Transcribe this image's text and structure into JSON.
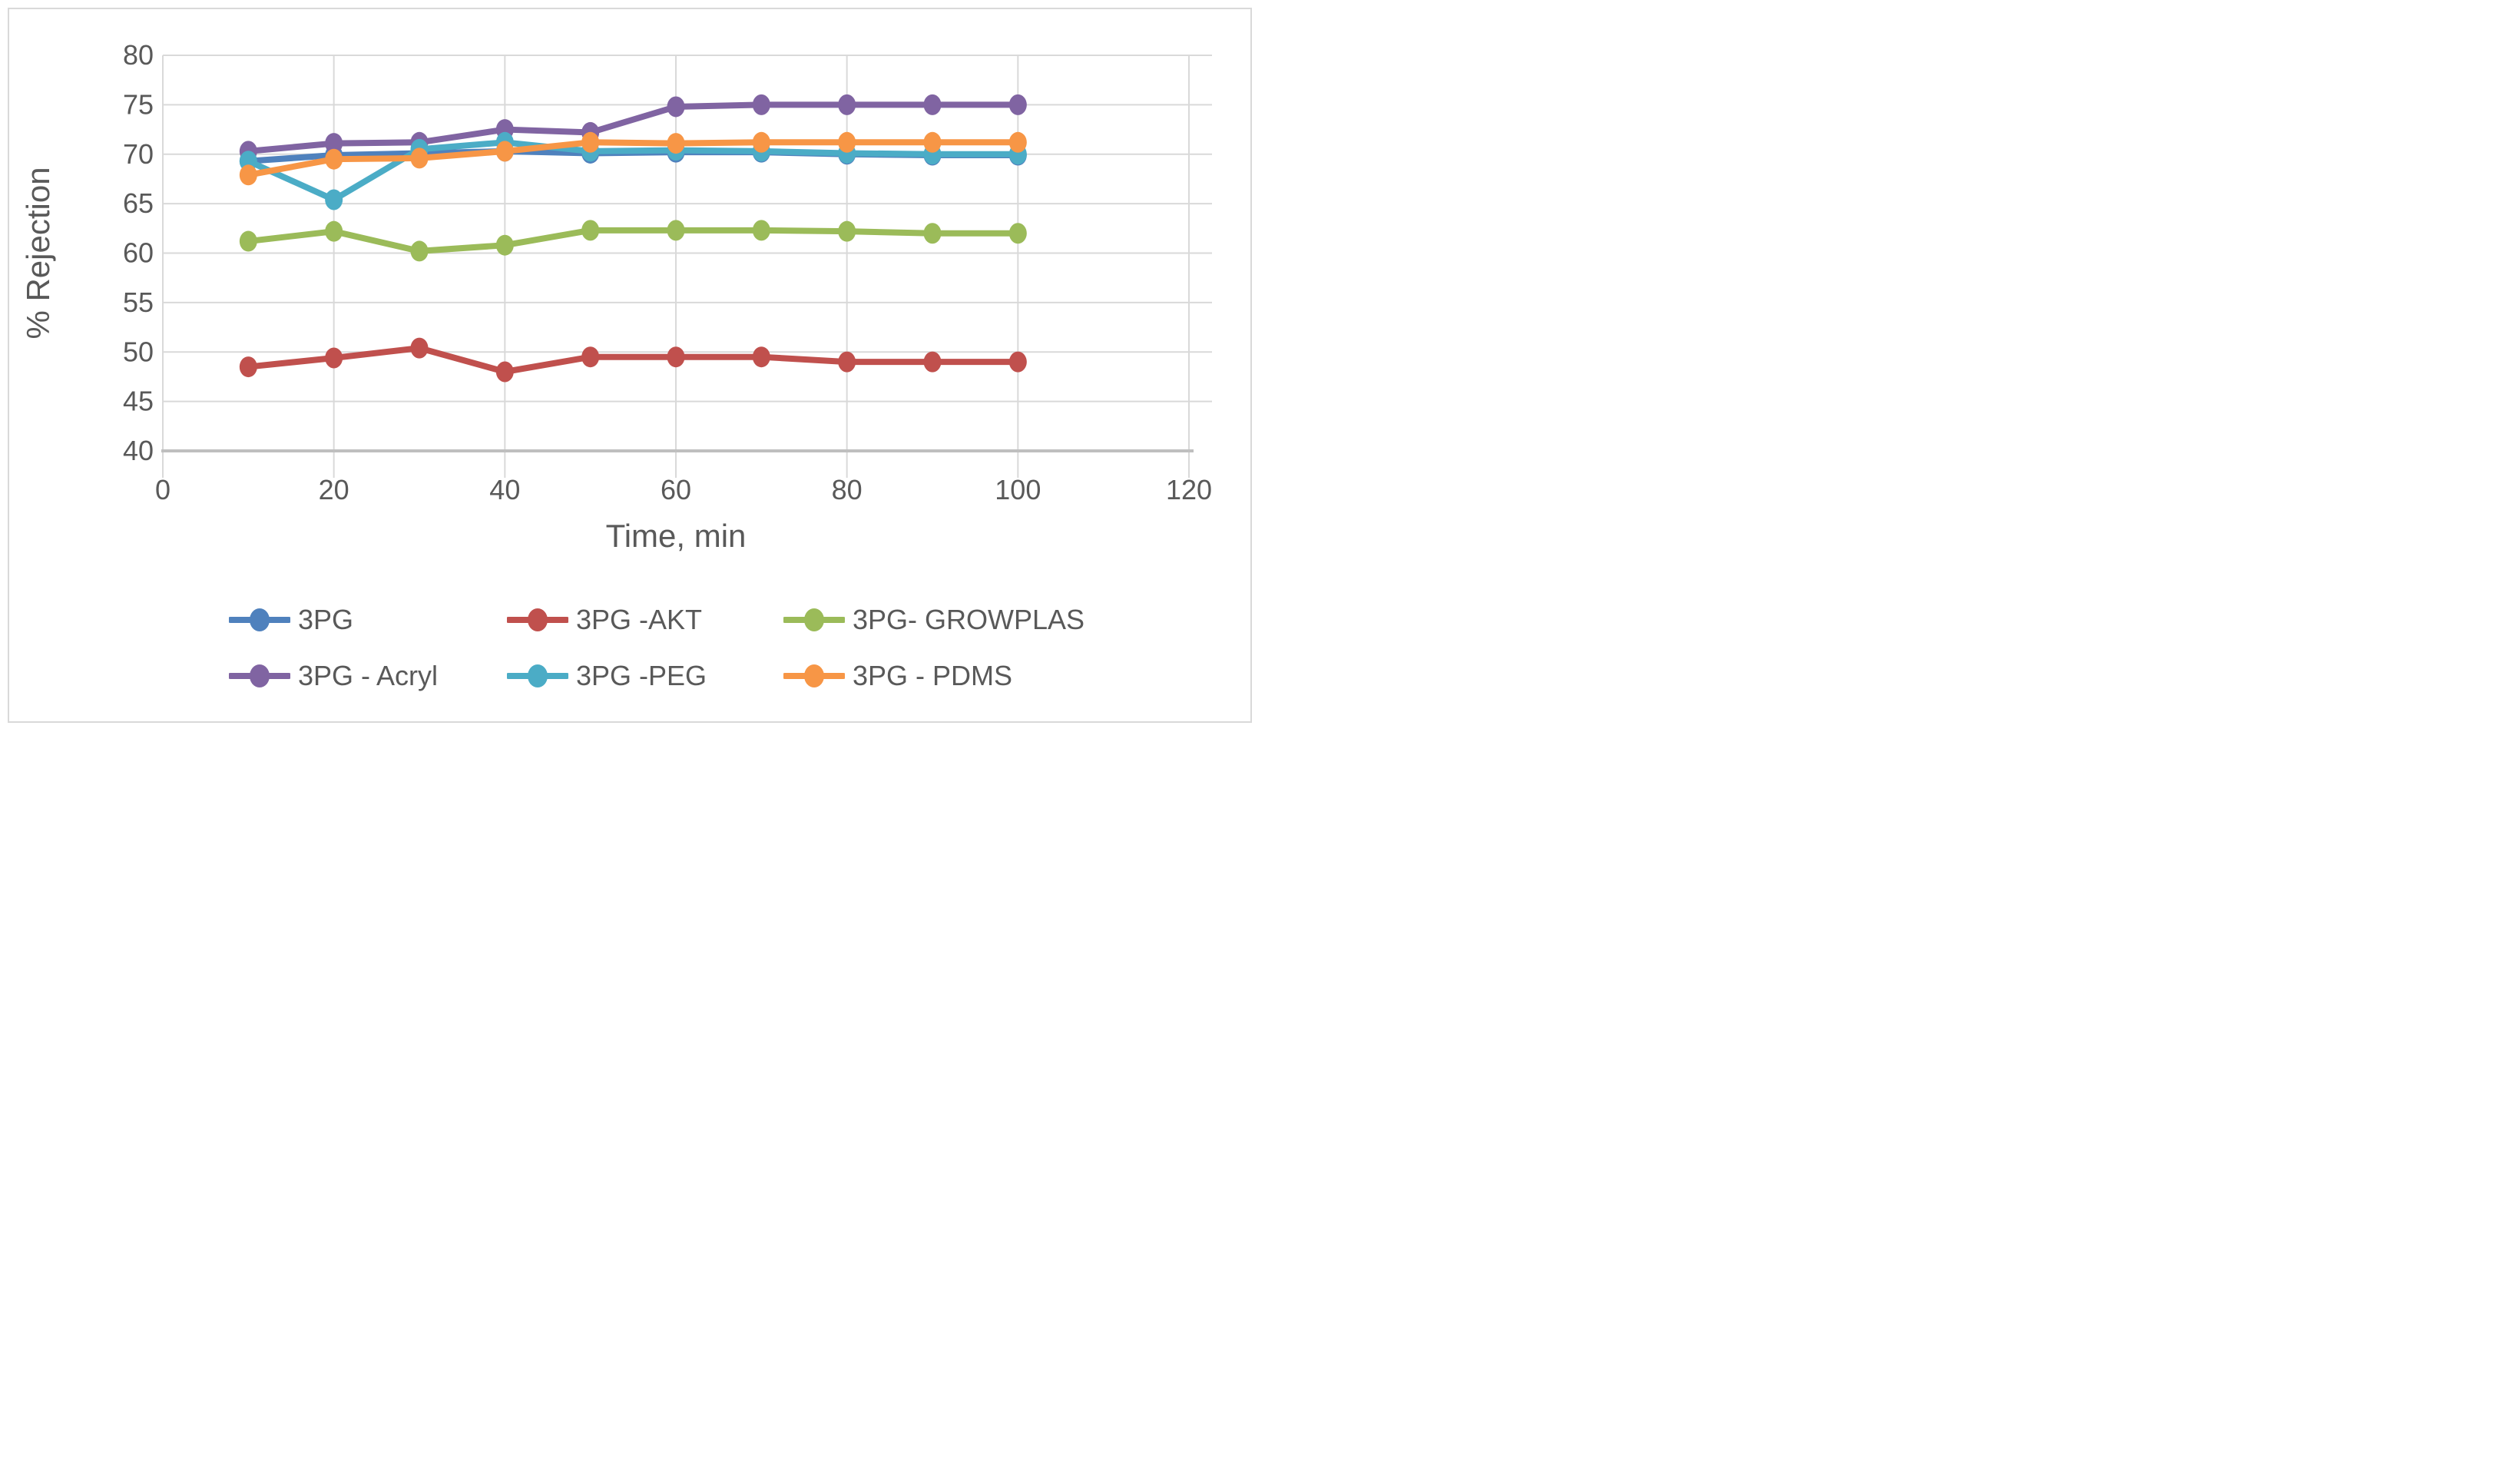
{
  "chart_data": {
    "type": "line",
    "title": "",
    "xlabel": "Time, min",
    "ylabel": "% Rejection",
    "xlim": [
      0,
      120
    ],
    "ylim": [
      40,
      80
    ],
    "x_ticks": [
      0,
      20,
      40,
      60,
      80,
      100,
      120
    ],
    "y_ticks": [
      40,
      45,
      50,
      55,
      60,
      65,
      70,
      75,
      80
    ],
    "grid": true,
    "legend_position": "bottom",
    "axis_text_color": "#595959",
    "gridline_color": "#D9D9D9",
    "axis_line_color": "#BFBFBF",
    "x": [
      10,
      20,
      30,
      40,
      50,
      60,
      70,
      80,
      90,
      100
    ],
    "series": [
      {
        "name": "3PG",
        "color": "#4F81BD",
        "values": [
          69.3,
          69.9,
          70.1,
          70.3,
          70.1,
          70.2,
          70.2,
          70.0,
          69.9,
          69.9
        ]
      },
      {
        "name": "3PG -AKT",
        "color": "#C0504D",
        "values": [
          48.5,
          49.4,
          50.4,
          48.0,
          49.5,
          49.5,
          49.5,
          49.0,
          49.0,
          49.0
        ]
      },
      {
        "name": "3PG- GROWPLAS",
        "color": "#9BBB59",
        "values": [
          61.2,
          62.2,
          60.2,
          60.8,
          62.3,
          62.3,
          62.3,
          62.2,
          62.0,
          62.0
        ]
      },
      {
        "name": "3PG - Acryl",
        "color": "#8064A2",
        "values": [
          70.3,
          71.1,
          71.2,
          72.5,
          72.2,
          74.8,
          75.0,
          75.0,
          75.0,
          75.0
        ]
      },
      {
        "name": "3PG -PEG",
        "color": "#4BACC6",
        "values": [
          69.3,
          65.4,
          70.5,
          71.2,
          70.3,
          70.4,
          70.3,
          70.1,
          70.0,
          70.0
        ]
      },
      {
        "name": "3PG - PDMS",
        "color": "#F79646",
        "values": [
          67.9,
          69.5,
          69.6,
          70.3,
          71.2,
          71.1,
          71.2,
          71.2,
          71.2,
          71.2
        ]
      }
    ]
  }
}
